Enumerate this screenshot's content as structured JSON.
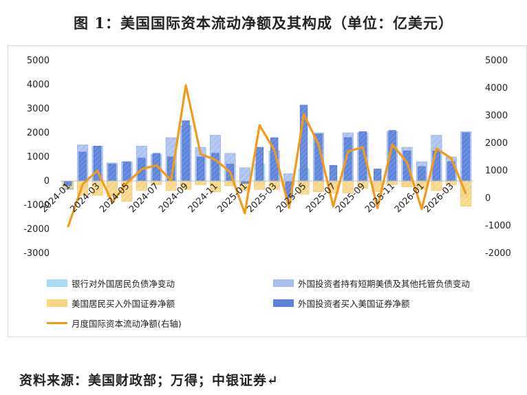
{
  "title": "图 1：美国国际资本流动净额及其构成（单位：亿美元）",
  "source": "资料来源：美国财政部；万得；中银证券↵",
  "chart_data": {
    "type": "bar",
    "x": [
      "2024-01",
      "2024-02",
      "2024-03",
      "2024-04",
      "2024-05",
      "2024-06",
      "2024-07",
      "2024-08",
      "2024-09",
      "2024-10",
      "2024-11",
      "2024-12",
      "2025-01",
      "2025-02",
      "2025-03",
      "2025-04",
      "2025-05",
      "2025-06",
      "2025-07",
      "2025-08",
      "2025-09",
      "2025-10",
      "2025-11",
      "2025-12",
      "2026-01",
      "2026-02",
      "2026-03",
      "2026-04"
    ],
    "x_tick_labels": [
      "2024-01",
      "2024-03",
      "2024-05",
      "2024-07",
      "2024-09",
      "2024-11",
      "2025-01",
      "2025-03",
      "2025-05",
      "2025-07",
      "2025-09",
      "2025-11",
      "2026-01",
      "2026-03"
    ],
    "left_axis": {
      "ylim": [
        -3000,
        5000
      ],
      "ticks": [
        5000,
        4000,
        3000,
        2000,
        1000,
        0,
        -1000,
        -2000,
        -3000
      ]
    },
    "right_axis": {
      "ylim": [
        -2000,
        5000
      ],
      "ticks": [
        5000,
        4000,
        3000,
        2000,
        1000,
        0,
        -1000,
        -2000
      ]
    },
    "colors": {
      "bank": "#a9dcf2",
      "short_term": "#a8bff0",
      "us_residents": "#f8d583",
      "foreign_securities": "#5a82dc",
      "line": "#f29a1a"
    },
    "series": [
      {
        "key": "bank",
        "name": "银行对外国居民负债净变动",
        "type": "bar",
        "axis": "left",
        "values": [
          -300,
          -250,
          300,
          -300,
          650,
          -250,
          300,
          100,
          1850,
          -150,
          800,
          -200,
          -150,
          700,
          500,
          -50,
          500,
          -100,
          -50,
          150,
          -100,
          -150,
          -100,
          -250,
          -100,
          400,
          650,
          -700
        ]
      },
      {
        "key": "short_term",
        "name": "外国投资者持有短期美债及其他托管负债变动",
        "type": "bar",
        "axis": "left",
        "values": [
          -350,
          1500,
          1450,
          750,
          800,
          1450,
          1100,
          1800,
          2300,
          1400,
          1900,
          1150,
          550,
          -50,
          1250,
          300,
          -300,
          2000,
          -200,
          2000,
          2000,
          -100,
          2050,
          1400,
          800,
          1900,
          1000,
          2050
        ]
      },
      {
        "key": "us_residents",
        "name": "美国居民买入外国证券净额",
        "type": "bar",
        "axis": "left",
        "values": [
          -300,
          -600,
          -600,
          -650,
          -850,
          -400,
          -150,
          -400,
          -350,
          -150,
          -450,
          -200,
          -400,
          -350,
          -350,
          -200,
          -550,
          -450,
          -500,
          -500,
          -300,
          -450,
          -150,
          -250,
          -350,
          -400,
          -150,
          -1050
        ]
      },
      {
        "key": "foreign_securities",
        "name": "外国投资者买入美国证券净额",
        "type": "bar",
        "axis": "left",
        "values": [
          -200,
          1200,
          1450,
          700,
          800,
          950,
          1150,
          1000,
          2500,
          1000,
          1150,
          700,
          -100,
          1400,
          1800,
          -700,
          3150,
          1950,
          650,
          1800,
          2050,
          500,
          2100,
          1250,
          600,
          1250,
          800,
          2000
        ]
      },
      {
        "key": "line",
        "name": "月度国际资本流动净额(右轴)",
        "type": "line",
        "axis": "right",
        "values": [
          -1050,
          500,
          1000,
          -150,
          550,
          1050,
          1200,
          650,
          4100,
          1600,
          1400,
          950,
          -550,
          2650,
          1750,
          -350,
          3050,
          1950,
          -300,
          1700,
          1850,
          -350,
          1950,
          1300,
          -400,
          1800,
          1450,
          150
        ]
      }
    ]
  },
  "legend": {
    "bank": "银行对外国居民负债净变动",
    "short_term": "外国投资者持有短期美债及其他托管负债变动",
    "us_residents": "美国居民买入外国证券净额",
    "foreign_securities": "外国投资者买入美国证券净额",
    "line": "月度国际资本流动净额(右轴)"
  }
}
